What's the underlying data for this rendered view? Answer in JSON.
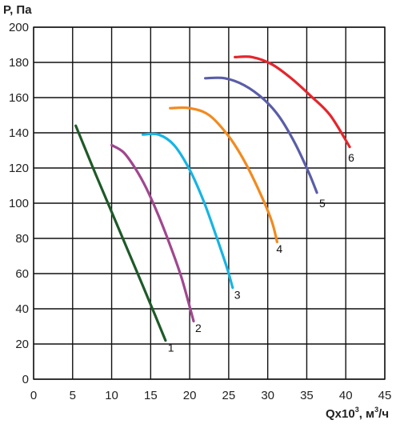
{
  "chart_data": {
    "type": "line",
    "ylabel": "P, Па",
    "xlabel": {
      "prefix": "Qx10",
      "exp": "3",
      "mid": ", м",
      "unit_exp": "3",
      "suffix": "/ч"
    },
    "xlim": [
      0,
      45
    ],
    "ylim": [
      0,
      200
    ],
    "xticks": [
      "0",
      "5",
      "10",
      "15",
      "20",
      "25",
      "30",
      "35",
      "40",
      "45"
    ],
    "yticks": [
      "0",
      "20",
      "40",
      "60",
      "80",
      "100",
      "120",
      "140",
      "160",
      "180",
      "200"
    ],
    "grid": true,
    "series": [
      {
        "name": "1",
        "color": "#1e5a28",
        "points": [
          [
            5.4,
            144
          ],
          [
            8,
            116
          ],
          [
            10,
            95
          ],
          [
            12,
            74
          ],
          [
            14,
            53
          ],
          [
            15.6,
            36
          ],
          [
            16.9,
            22
          ]
        ],
        "label_at": [
          17.2,
          18
        ]
      },
      {
        "name": "2",
        "color": "#a0478e",
        "points": [
          [
            10,
            133
          ],
          [
            11.5,
            129
          ],
          [
            13,
            120
          ],
          [
            14.5,
            108
          ],
          [
            16,
            93
          ],
          [
            17.5,
            76
          ],
          [
            19,
            57
          ],
          [
            20.5,
            33
          ]
        ],
        "label_at": [
          20.7,
          29
        ]
      },
      {
        "name": "3",
        "color": "#17b4e4",
        "points": [
          [
            14,
            139
          ],
          [
            16,
            139
          ],
          [
            18,
            133
          ],
          [
            20,
            119
          ],
          [
            21.8,
            101
          ],
          [
            23.5,
            80
          ],
          [
            24.8,
            63
          ],
          [
            25.5,
            52
          ]
        ],
        "label_at": [
          25.7,
          48
        ]
      },
      {
        "name": "4",
        "color": "#f28a1e",
        "points": [
          [
            17.5,
            154
          ],
          [
            20,
            154
          ],
          [
            22.5,
            150
          ],
          [
            25,
            138
          ],
          [
            27,
            124
          ],
          [
            29,
            106
          ],
          [
            30.5,
            90
          ],
          [
            31.2,
            78
          ]
        ],
        "label_at": [
          31.1,
          74
        ]
      },
      {
        "name": "5",
        "color": "#5a5da8",
        "points": [
          [
            22,
            171
          ],
          [
            24.5,
            171
          ],
          [
            27,
            167
          ],
          [
            29.5,
            159
          ],
          [
            31.5,
            149
          ],
          [
            33.5,
            134
          ],
          [
            35.3,
            117
          ],
          [
            36.3,
            106
          ]
        ],
        "label_at": [
          36.6,
          100
        ]
      },
      {
        "name": "6",
        "color": "#e4262c",
        "points": [
          [
            25.8,
            183
          ],
          [
            28,
            183
          ],
          [
            30.5,
            179
          ],
          [
            33,
            171
          ],
          [
            35.5,
            161
          ],
          [
            38,
            150
          ],
          [
            40.5,
            132
          ]
        ],
        "label_at": [
          40.3,
          126
        ]
      }
    ]
  }
}
